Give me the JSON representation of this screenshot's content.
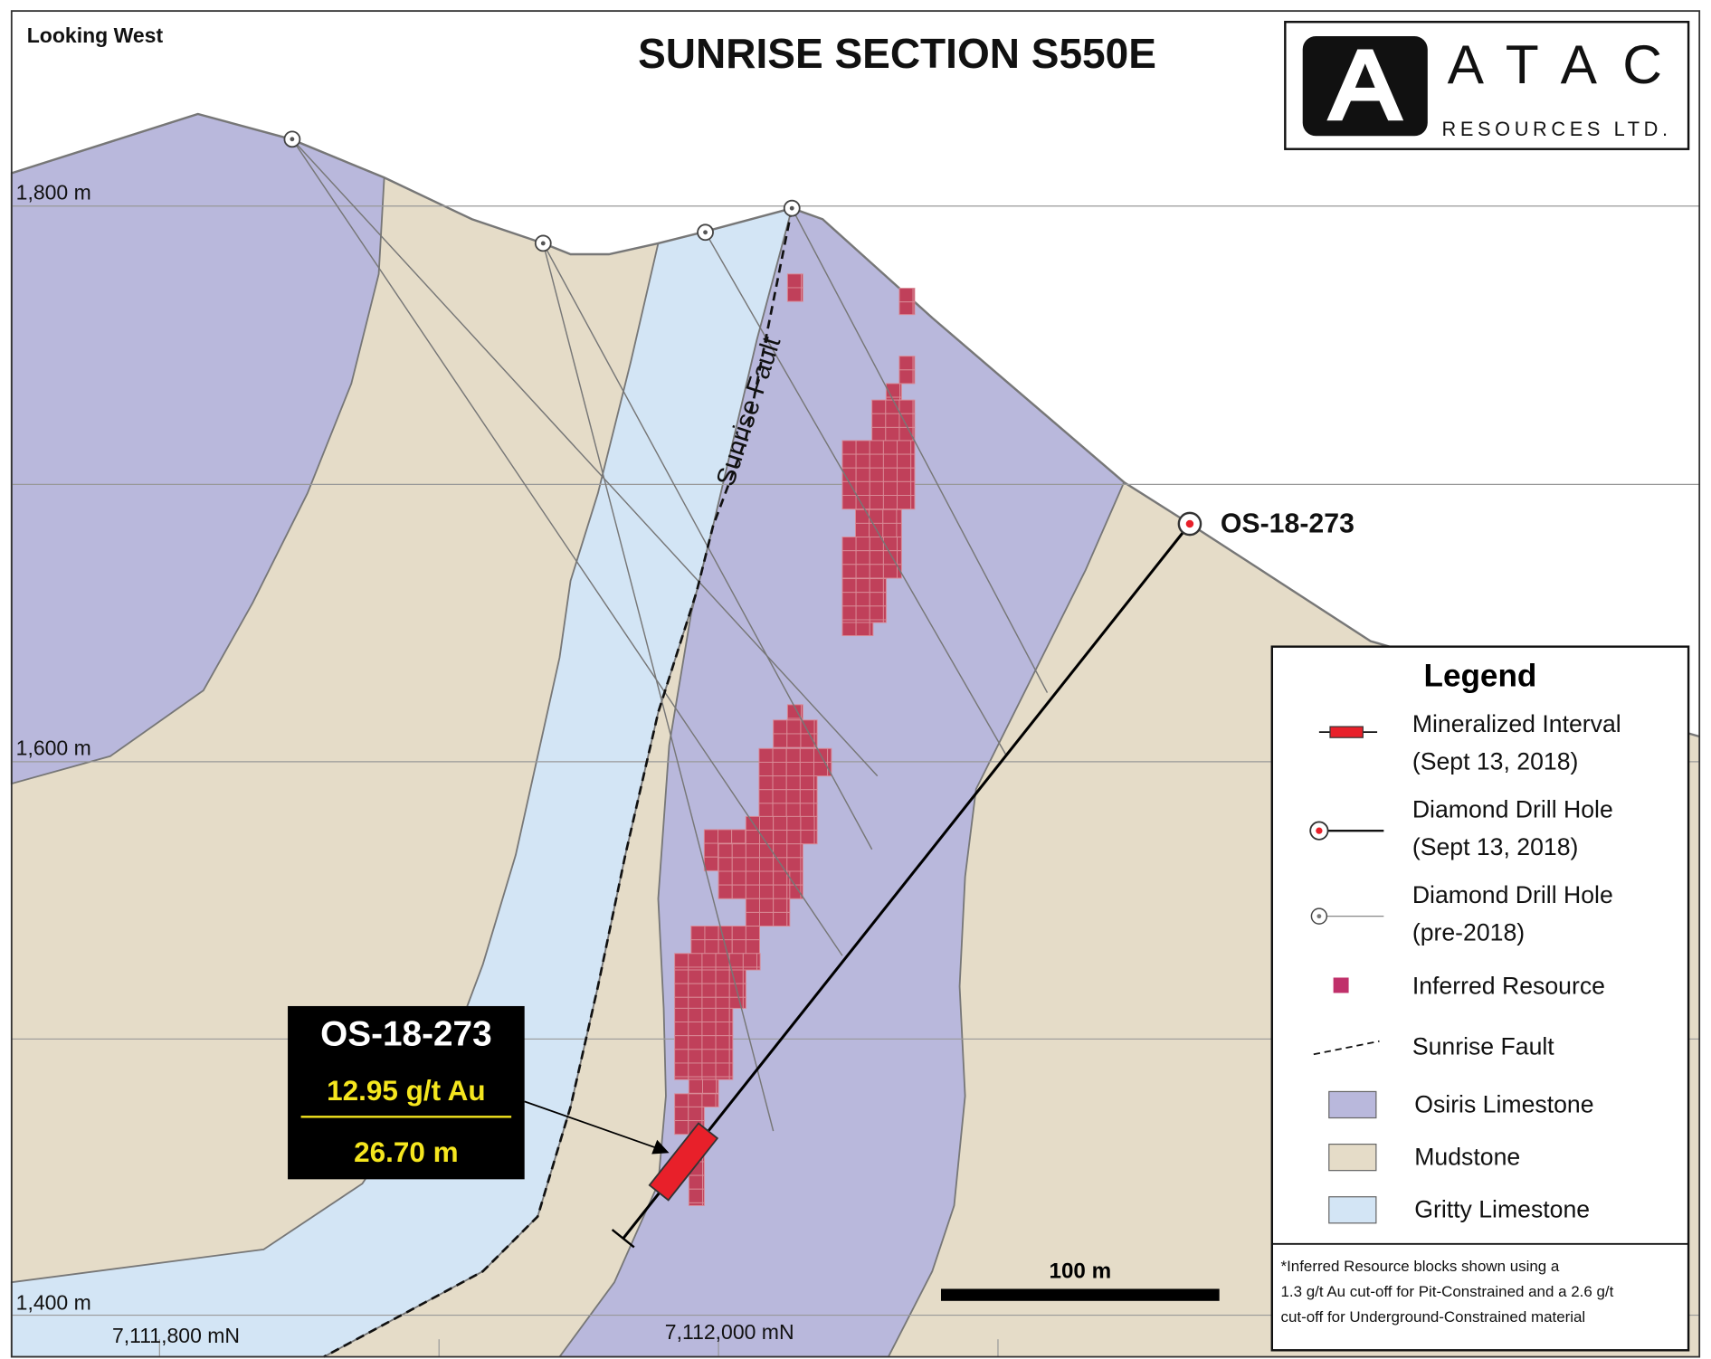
{
  "header": {
    "view_direction": "Looking West",
    "title": "SUNRISE SECTION S550E",
    "logo": {
      "letter": "A",
      "name": "ATAC",
      "subtitle": "RESOURCES LTD."
    }
  },
  "axes": {
    "elevation_labels": [
      "1,800 m",
      "1,600 m",
      "1,400 m"
    ],
    "northing_labels": [
      "7,111,800 mN",
      "7,112,000 mN"
    ]
  },
  "fault_label": "Sunrise Fault",
  "drill_hole_label": "OS-18-273",
  "callout": {
    "hole": "OS-18-273",
    "grade": "12.95 g/t Au",
    "length": "26.70 m"
  },
  "scale_bar": "100 m",
  "legend": {
    "title": "Legend",
    "items": [
      {
        "label1": "Mineralized Interval",
        "label2": "(Sept 13, 2018)",
        "symbol": "red-bar"
      },
      {
        "label1": "Diamond Drill Hole",
        "label2": "(Sept 13, 2018)",
        "symbol": "new-hole"
      },
      {
        "label1": "Diamond Drill Hole",
        "label2": "(pre-2018)",
        "symbol": "old-hole"
      },
      {
        "label1": "Inferred Resource",
        "symbol": "resource-square"
      },
      {
        "label1": "Sunrise Fault",
        "symbol": "dashed-line"
      },
      {
        "label1": "Osiris Limestone",
        "symbol": "swatch"
      },
      {
        "label1": "Mudstone",
        "symbol": "swatch"
      },
      {
        "label1": "Gritty Limestone",
        "symbol": "swatch"
      }
    ],
    "note": [
      "*Inferred Resource blocks shown using a",
      "1.3 g/t Au cut-off for Pit-Constrained and a 2.6 g/t",
      "cut-off for Underground-Constrained material"
    ]
  },
  "colors": {
    "osiris_limestone": "#b9b8dc",
    "mudstone": "#e5dcc8",
    "gritty_limestone": "#d3e5f5",
    "inferred_resource": "#c0405a",
    "mineralized_interval": "#e8202a",
    "callout_text": "#f5e61e"
  }
}
